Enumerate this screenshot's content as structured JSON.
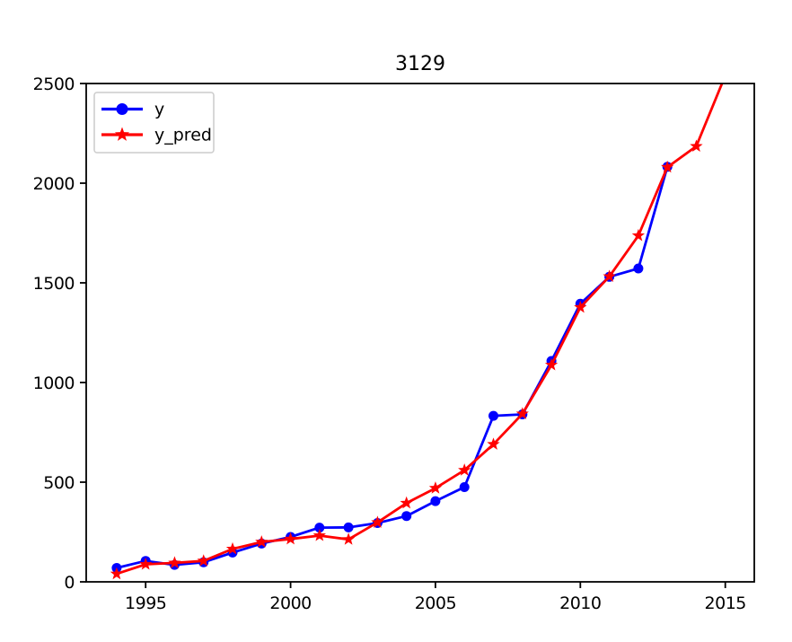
{
  "figure": {
    "background": "#ffffff",
    "axis_color": "#000000"
  },
  "title": "3129",
  "legend": {
    "border_color": "#cccccc",
    "background": "#ffffff",
    "items": [
      {
        "label": "y",
        "color": "#0000ff",
        "marker": "circle"
      },
      {
        "label": "y_pred",
        "color": "#ff0000",
        "marker": "star"
      }
    ]
  },
  "chart_data": {
    "type": "line",
    "title": "3129",
    "xlabel": "",
    "ylabel": "",
    "xlim": [
      1992.95,
      2016.0
    ],
    "ylim": [
      0,
      2500
    ],
    "x_ticks": [
      1995,
      2000,
      2005,
      2010,
      2015
    ],
    "y_ticks": [
      0,
      500,
      1000,
      1500,
      2000,
      2500
    ],
    "grid": false,
    "legend_position": "upper-left",
    "series": [
      {
        "name": "y",
        "color": "#0000ff",
        "marker": "circle",
        "x": [
          1994,
          1995,
          1996,
          1997,
          1998,
          1999,
          2000,
          2001,
          2002,
          2003,
          2004,
          2005,
          2006,
          2007,
          2008,
          2009,
          2010,
          2011,
          2012,
          2013
        ],
        "values": [
          70,
          105,
          85,
          98,
          147,
          192,
          225,
          272,
          273,
          295,
          330,
          405,
          475,
          833,
          840,
          1108,
          1395,
          1530,
          1572,
          2082
        ]
      },
      {
        "name": "y_pred",
        "color": "#ff0000",
        "marker": "star",
        "x": [
          1994,
          1995,
          1996,
          1997,
          1998,
          1999,
          2000,
          2001,
          2002,
          2003,
          2004,
          2005,
          2006,
          2007,
          2008,
          2009,
          2010,
          2011,
          2012,
          2013,
          2014,
          2015
        ],
        "values": [
          40,
          88,
          95,
          105,
          165,
          200,
          215,
          232,
          213,
          298,
          395,
          470,
          560,
          690,
          843,
          1088,
          1377,
          1532,
          1737,
          2080,
          2185,
          2540
        ]
      }
    ]
  }
}
